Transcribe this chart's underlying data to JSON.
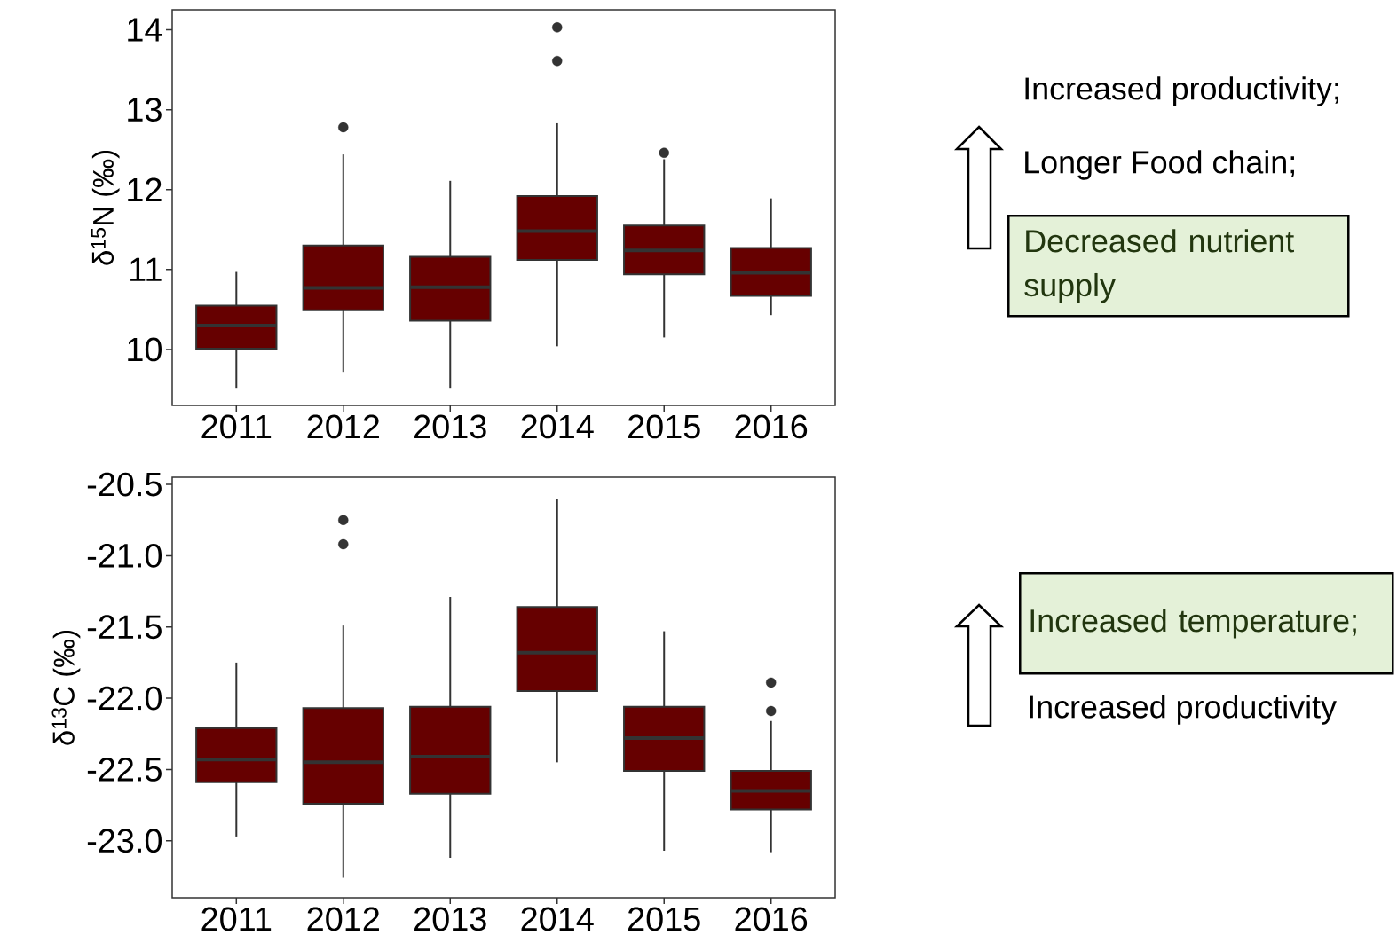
{
  "chart_data": [
    {
      "type": "box",
      "ylabel": "δ$^{15}$N (‰)",
      "categories": [
        "2011",
        "2012",
        "2013",
        "2014",
        "2015",
        "2016"
      ],
      "ylim": [
        9.3,
        14.25
      ],
      "yticks": [
        10,
        11,
        12,
        13,
        14
      ],
      "series": [
        {
          "color": "#660000",
          "boxes": [
            {
              "low": 9.52,
              "q1": 10.01,
              "median": 10.3,
              "q3": 10.55,
              "high": 10.97
            },
            {
              "low": 9.72,
              "q1": 10.49,
              "median": 10.77,
              "q3": 11.3,
              "high": 12.44,
              "outliers": [
                12.78
              ]
            },
            {
              "low": 9.52,
              "q1": 10.36,
              "median": 10.78,
              "q3": 11.16,
              "high": 12.11
            },
            {
              "low": 10.04,
              "q1": 11.12,
              "median": 11.48,
              "q3": 11.92,
              "high": 12.83,
              "outliers": [
                13.61,
                14.03
              ]
            },
            {
              "low": 10.15,
              "q1": 10.94,
              "median": 11.24,
              "q3": 11.55,
              "high": 12.38,
              "outliers": [
                12.46
              ]
            },
            {
              "low": 10.43,
              "q1": 10.67,
              "median": 10.96,
              "q3": 11.27,
              "high": 11.89
            }
          ]
        }
      ],
      "annotations": [
        "Increased productivity;",
        "Longer Food chain;",
        "Decreased nutrient supply"
      ]
    },
    {
      "type": "box",
      "ylabel": "δ$^{13}$C (‰)",
      "categories": [
        "2011",
        "2012",
        "2013",
        "2014",
        "2015",
        "2016"
      ],
      "ylim": [
        -23.4,
        -20.45
      ],
      "yticks": [
        {
          "value": -23,
          "label": "-23.0"
        },
        -22.5,
        {
          "value": -22,
          "label": "-22.0"
        },
        -21.5,
        {
          "value": -21,
          "label": "-21.0"
        },
        -20.5
      ],
      "series": [
        {
          "color": "#660000",
          "boxes": [
            {
              "low": -22.97,
              "q1": -22.59,
              "median": -22.43,
              "q3": -22.21,
              "high": -21.75
            },
            {
              "low": -23.26,
              "q1": -22.74,
              "median": -22.45,
              "q3": -22.07,
              "high": -21.49,
              "outliers": [
                -20.92,
                -20.75
              ]
            },
            {
              "low": -23.12,
              "q1": -22.67,
              "median": -22.41,
              "q3": -22.06,
              "high": -21.29
            },
            {
              "low": -22.45,
              "q1": -21.95,
              "median": -21.68,
              "q3": -21.36,
              "high": -20.6
            },
            {
              "low": -23.07,
              "q1": -22.51,
              "median": -22.28,
              "q3": -22.06,
              "high": -21.53
            },
            {
              "low": -23.08,
              "q1": -22.78,
              "median": -22.65,
              "q3": -22.51,
              "high": -22.16,
              "outliers": [
                -22.09,
                -21.89
              ]
            }
          ]
        }
      ],
      "annotations": [
        "Increased temperature;",
        "Increased productivity"
      ]
    }
  ]
}
